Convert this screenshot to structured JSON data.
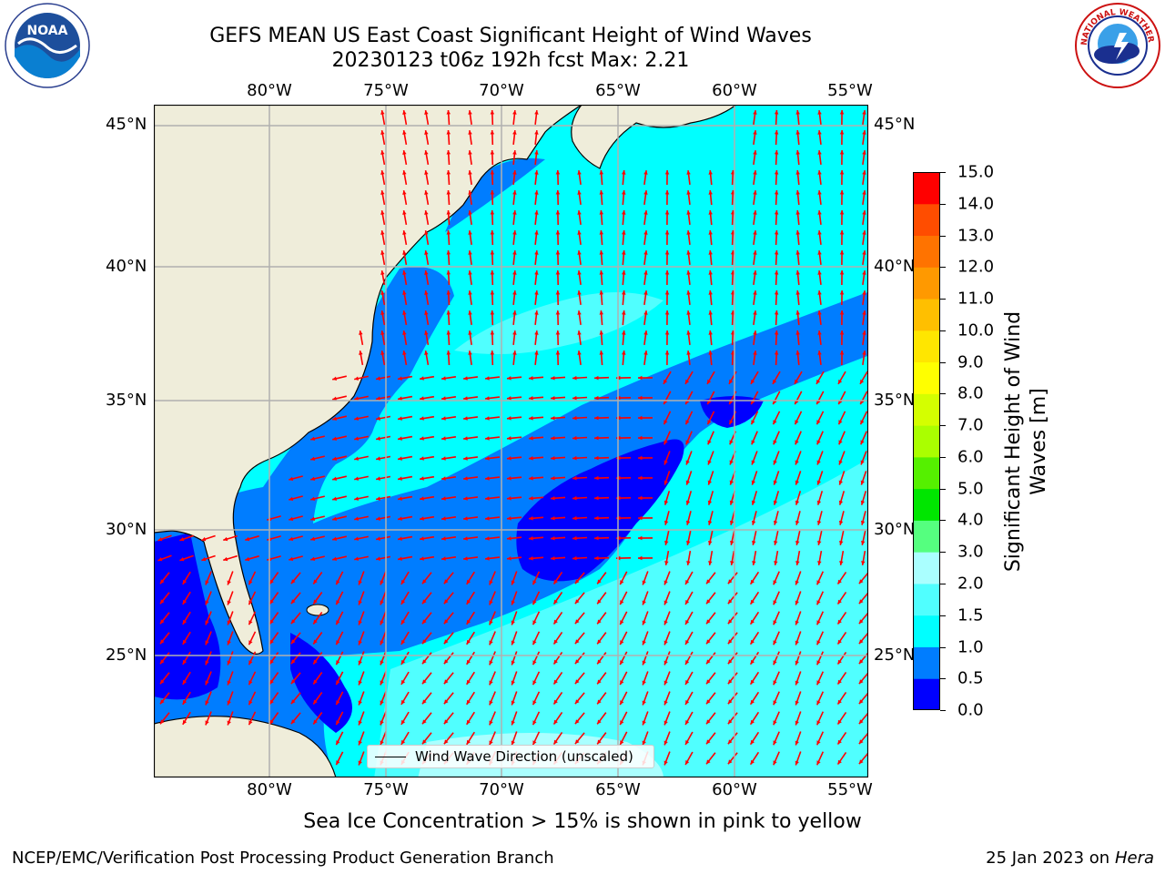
{
  "header": {
    "title_line1": "GEFS MEAN US East Coast Significant Height of Wind Waves",
    "title_line2": "20230123 t06z 192h fcst   Max: 2.21"
  },
  "map": {
    "lon_labels": [
      "80°W",
      "75°W",
      "70°W",
      "65°W",
      "60°W",
      "55°W"
    ],
    "lat_labels": [
      "45°N",
      "40°N",
      "35°N",
      "30°N",
      "25°N"
    ],
    "legend_text": "Wind Wave Direction (unscaled)",
    "arrow_color": "#ff0000",
    "land_color": "#efedda"
  },
  "colorbar": {
    "label": "Significant Height of Wind Waves [m]",
    "ticks": [
      "0.0",
      "0.5",
      "1.0",
      "1.5",
      "2.0",
      "3.0",
      "4.0",
      "5.0",
      "6.0",
      "7.0",
      "8.0",
      "9.0",
      "10.0",
      "11.0",
      "12.0",
      "13.0",
      "14.0",
      "15.0"
    ],
    "colors": [
      "#0000ff",
      "#007dff",
      "#00ffff",
      "#50ffff",
      "#aaffff",
      "#55ff7f",
      "#00e600",
      "#55f000",
      "#aaff00",
      "#d4ff00",
      "#ffff00",
      "#ffe600",
      "#ffbf00",
      "#ff9900",
      "#ff7300",
      "#ff4d00",
      "#ff0000"
    ]
  },
  "footer": {
    "note": "Sea Ice Concentration > 15% is shown in pink to yellow",
    "credit": "NCEP/EMC/Verification Post Processing Product Generation Branch",
    "date_prefix": "25 Jan 2023 on ",
    "machine": "Hera"
  },
  "logos": {
    "left": "noaa-logo",
    "right": "nws-logo",
    "left_text": "NOAA",
    "left_ring_text": "NATIONAL OCEANIC AND ATMOSPHERIC ADMINISTRATION · U.S. DEPARTMENT OF COMMERCE",
    "right_ring_text": "NATIONAL WEATHER SERVICE"
  }
}
